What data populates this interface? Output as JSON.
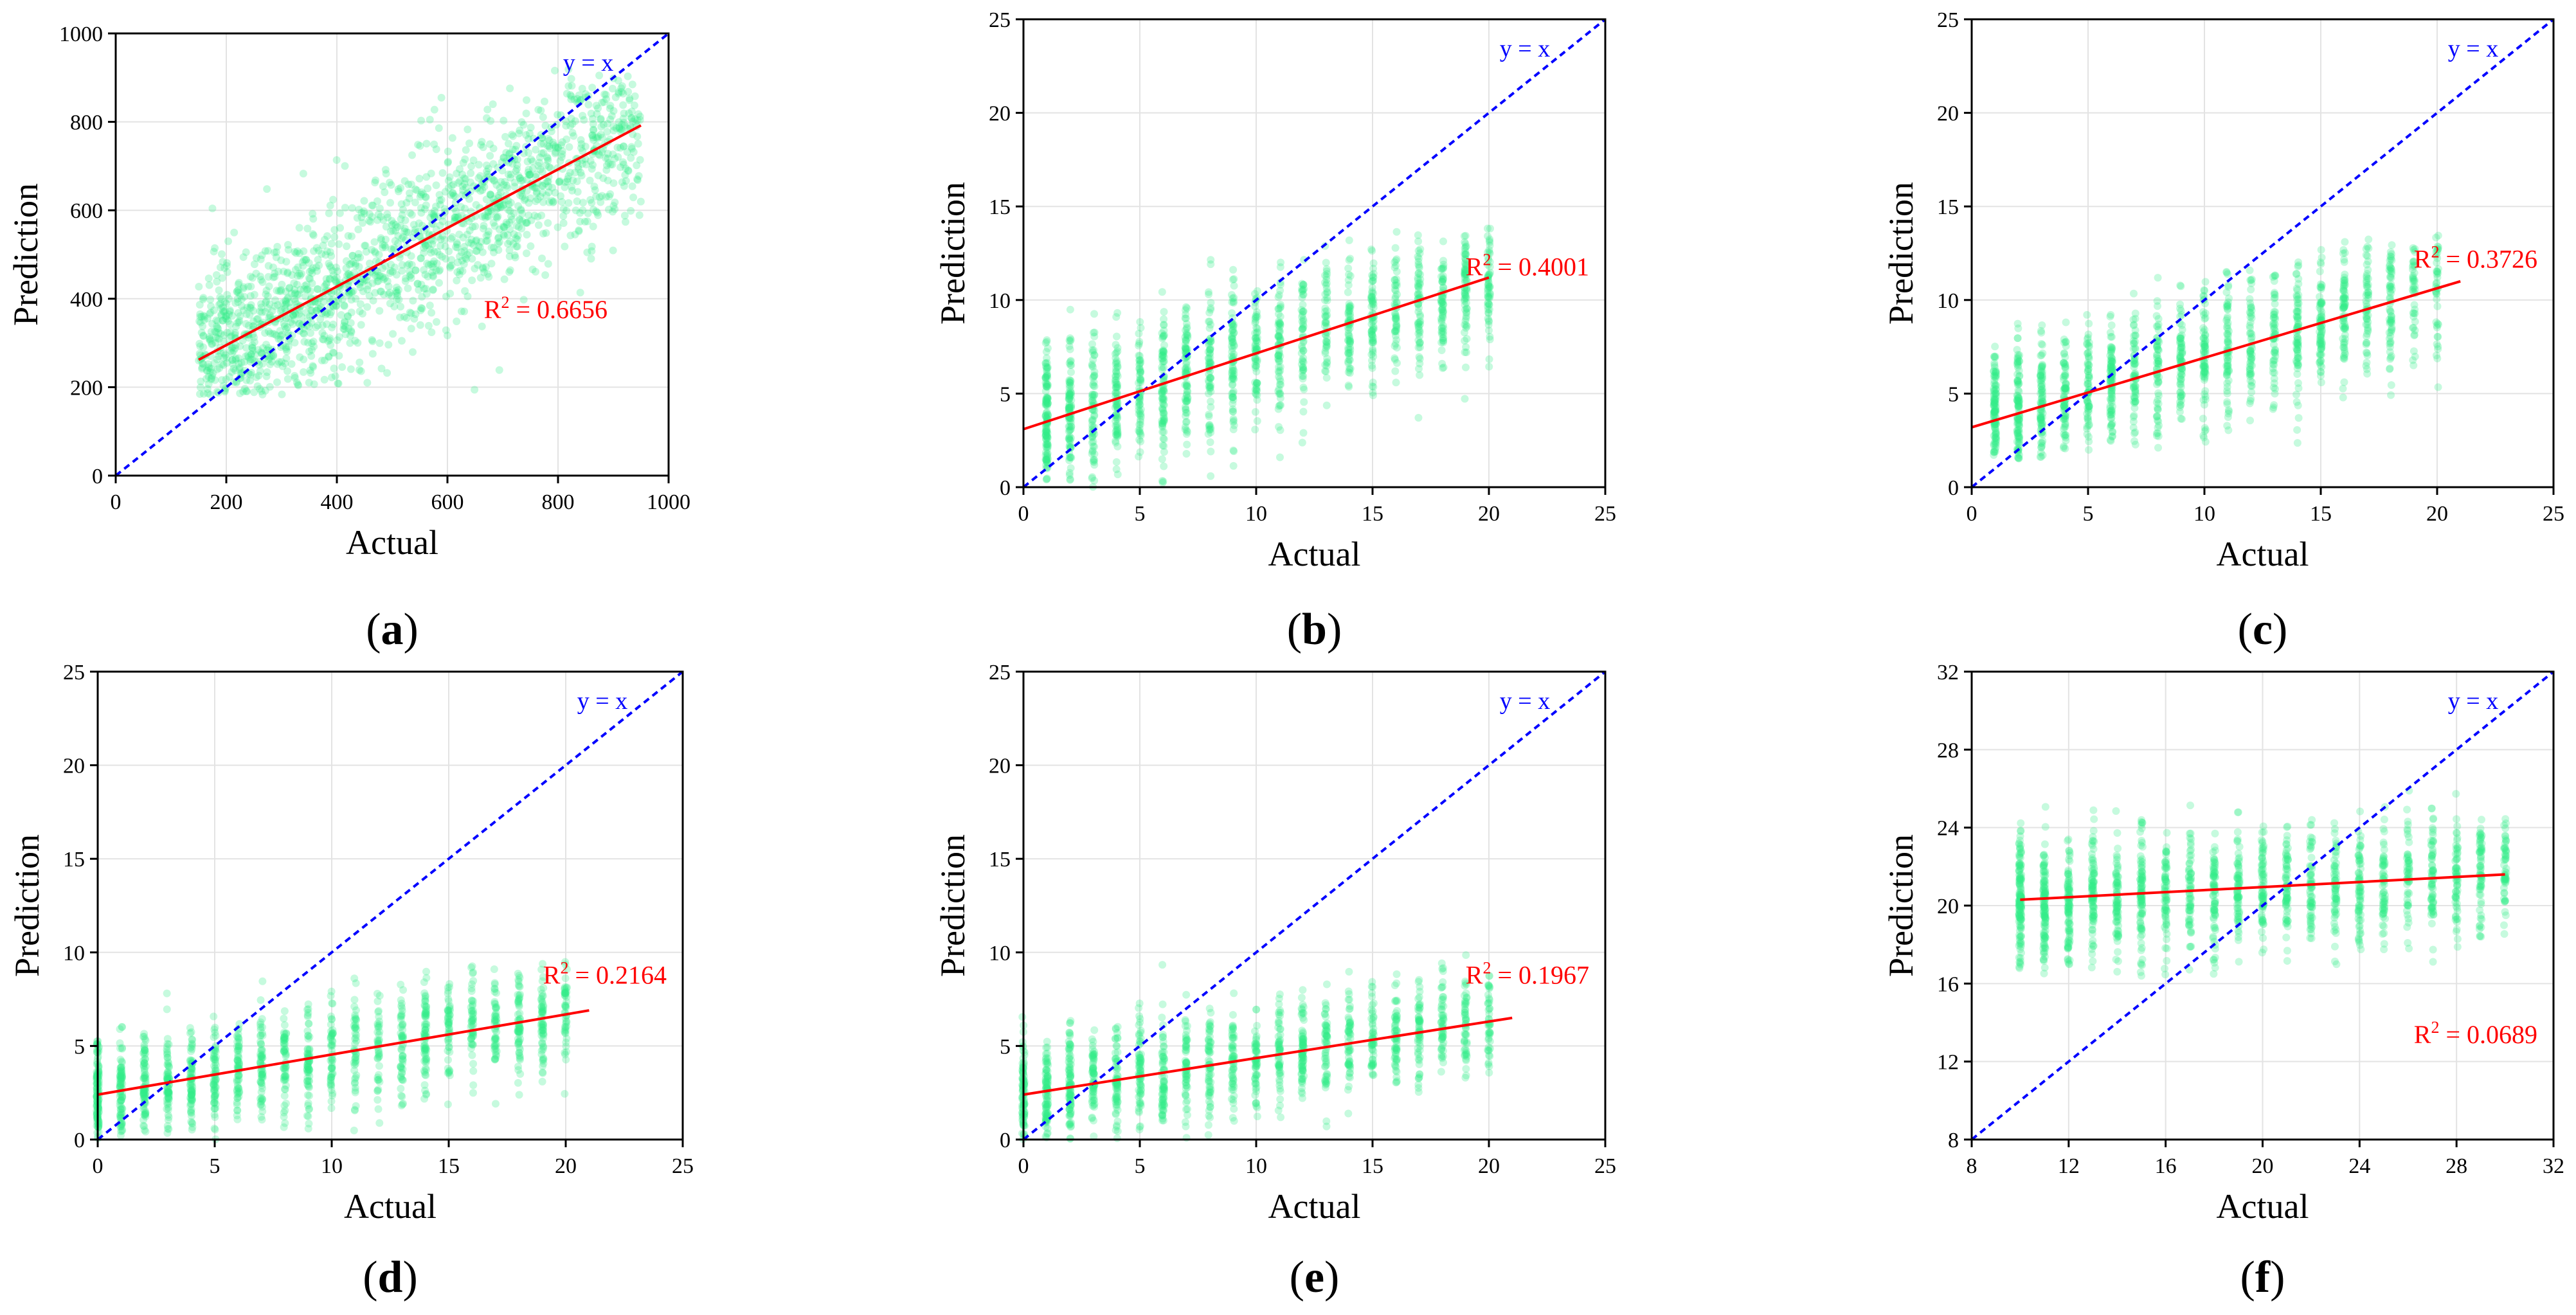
{
  "figure": {
    "point_color": "#33ee88",
    "fit_color": "#ff0000",
    "identity_color": "#0000ff"
  },
  "chart_data": [
    {
      "type": "scatter",
      "panel": "a",
      "panel_label": "a",
      "xlabel": "Actual",
      "ylabel": "Prediction",
      "xlim": [
        0,
        1000
      ],
      "ylim": [
        0,
        1000
      ],
      "xticks": [
        0,
        200,
        400,
        600,
        800,
        1000
      ],
      "yticks": [
        0,
        200,
        400,
        600,
        800,
        1000
      ],
      "xtick_labels": [
        "0",
        "200",
        "400",
        "600",
        "800",
        "1000"
      ],
      "ytick_labels": [
        "0",
        "200",
        "400",
        "600",
        "800",
        "1000"
      ],
      "identity_label": "y = x",
      "r2_label": "R",
      "r2_sup": "2",
      "r2_text": " = 0.6656",
      "r2": 0.6656,
      "fit_line": {
        "x": [
          150,
          950
        ],
        "y": [
          262,
          792
        ]
      },
      "point_cloud": {
        "x_range": [
          150,
          950
        ],
        "discrete_x": false,
        "count": 1800,
        "noise_sd": 95,
        "ylim_clip": [
          180,
          920
        ]
      }
    },
    {
      "type": "scatter",
      "panel": "b",
      "panel_label": "b",
      "xlabel": "Actual",
      "ylabel": "Prediction",
      "xlim": [
        0,
        25
      ],
      "ylim": [
        0,
        25
      ],
      "xticks": [
        0,
        5,
        10,
        15,
        20,
        25
      ],
      "yticks": [
        0,
        5,
        10,
        15,
        20,
        25
      ],
      "xtick_labels": [
        "0",
        "5",
        "10",
        "15",
        "20",
        "25"
      ],
      "ytick_labels": [
        "0",
        "5",
        "10",
        "15",
        "20",
        "25"
      ],
      "identity_label": "y = x",
      "r2_label": "R",
      "r2_sup": "2",
      "r2_text": " = 0.4001",
      "r2": 0.4001,
      "fit_line": {
        "x": [
          0,
          20
        ],
        "y": [
          3.1,
          11.2
        ]
      },
      "point_cloud": {
        "x_range": [
          1,
          20
        ],
        "discrete_x": true,
        "count": 1500,
        "noise_sd": 2.0,
        "ylim_clip": [
          0,
          14
        ]
      }
    },
    {
      "type": "scatter",
      "panel": "c",
      "panel_label": "c",
      "xlabel": "Actual",
      "ylabel": "Prediction",
      "xlim": [
        0,
        25
      ],
      "ylim": [
        0,
        25
      ],
      "xticks": [
        0,
        5,
        10,
        15,
        20,
        25
      ],
      "yticks": [
        0,
        5,
        10,
        15,
        20,
        25
      ],
      "xtick_labels": [
        "0",
        "5",
        "10",
        "15",
        "20",
        "25"
      ],
      "ytick_labels": [
        "0",
        "5",
        "10",
        "15",
        "20",
        "25"
      ],
      "identity_label": "y = x",
      "r2_label": "R",
      "r2_sup": "2",
      "r2_text": " = 0.3726",
      "r2": 0.3726,
      "fit_line": {
        "x": [
          0,
          21
        ],
        "y": [
          3.2,
          11.0
        ]
      },
      "point_cloud": {
        "x_range": [
          1,
          20
        ],
        "discrete_x": true,
        "count": 1500,
        "noise_sd": 1.9,
        "ylim_clip": [
          1.5,
          13.5
        ]
      }
    },
    {
      "type": "scatter",
      "panel": "d",
      "panel_label": "d",
      "xlabel": "Actual",
      "ylabel": "Prediction",
      "xlim": [
        0,
        25
      ],
      "ylim": [
        0,
        25
      ],
      "xticks": [
        0,
        5,
        10,
        15,
        20,
        25
      ],
      "yticks": [
        0,
        5,
        10,
        15,
        20,
        25
      ],
      "xtick_labels": [
        "0",
        "5",
        "10",
        "15",
        "20",
        "25"
      ],
      "ytick_labels": [
        "0",
        "5",
        "10",
        "15",
        "20",
        "25"
      ],
      "identity_label": "y = x",
      "r2_label": "R",
      "r2_sup": "2",
      "r2_text": " = 0.2164",
      "r2": 0.2164,
      "fit_line": {
        "x": [
          0,
          21
        ],
        "y": [
          2.4,
          6.9
        ]
      },
      "point_cloud": {
        "x_range": [
          0,
          20
        ],
        "discrete_x": true,
        "count": 1400,
        "noise_sd": 1.5,
        "ylim_clip": [
          0,
          9.5
        ]
      }
    },
    {
      "type": "scatter",
      "panel": "e",
      "panel_label": "e",
      "xlabel": "Actual",
      "ylabel": "Prediction",
      "xlim": [
        0,
        25
      ],
      "ylim": [
        0,
        25
      ],
      "xticks": [
        0,
        5,
        10,
        15,
        20,
        25
      ],
      "yticks": [
        0,
        5,
        10,
        15,
        20,
        25
      ],
      "xtick_labels": [
        "0",
        "5",
        "10",
        "15",
        "20",
        "25"
      ],
      "ytick_labels": [
        "0",
        "5",
        "10",
        "15",
        "20",
        "25"
      ],
      "identity_label": "y = x",
      "r2_label": "R",
      "r2_sup": "2",
      "r2_text": " = 0.1967",
      "r2": 0.1967,
      "fit_line": {
        "x": [
          0,
          21
        ],
        "y": [
          2.4,
          6.5
        ]
      },
      "point_cloud": {
        "x_range": [
          0,
          20
        ],
        "discrete_x": true,
        "count": 1400,
        "noise_sd": 1.5,
        "ylim_clip": [
          0,
          10
        ]
      }
    },
    {
      "type": "scatter",
      "panel": "f",
      "panel_label": "f",
      "xlabel": "Actual",
      "ylabel": "Prediction",
      "xlim": [
        8,
        32
      ],
      "ylim": [
        8,
        32
      ],
      "xticks": [
        8,
        12,
        16,
        20,
        24,
        28,
        32
      ],
      "yticks": [
        8,
        12,
        16,
        20,
        24,
        28,
        32
      ],
      "xtick_labels": [
        "8",
        "12",
        "16",
        "20",
        "24",
        "28",
        "32"
      ],
      "ytick_labels": [
        "8",
        "12",
        "16",
        "20",
        "24",
        "28",
        "32"
      ],
      "identity_label": "y = x",
      "r2_label": "R",
      "r2_sup": "2",
      "r2_text": " = 0.0689",
      "r2": 0.0689,
      "fit_line": {
        "x": [
          10,
          30
        ],
        "y": [
          20.3,
          21.6
        ]
      },
      "point_cloud": {
        "x_range": [
          10,
          30
        ],
        "discrete_x": true,
        "count": 1600,
        "noise_sd": 1.6,
        "ylim_clip": [
          13,
          26
        ]
      }
    }
  ]
}
